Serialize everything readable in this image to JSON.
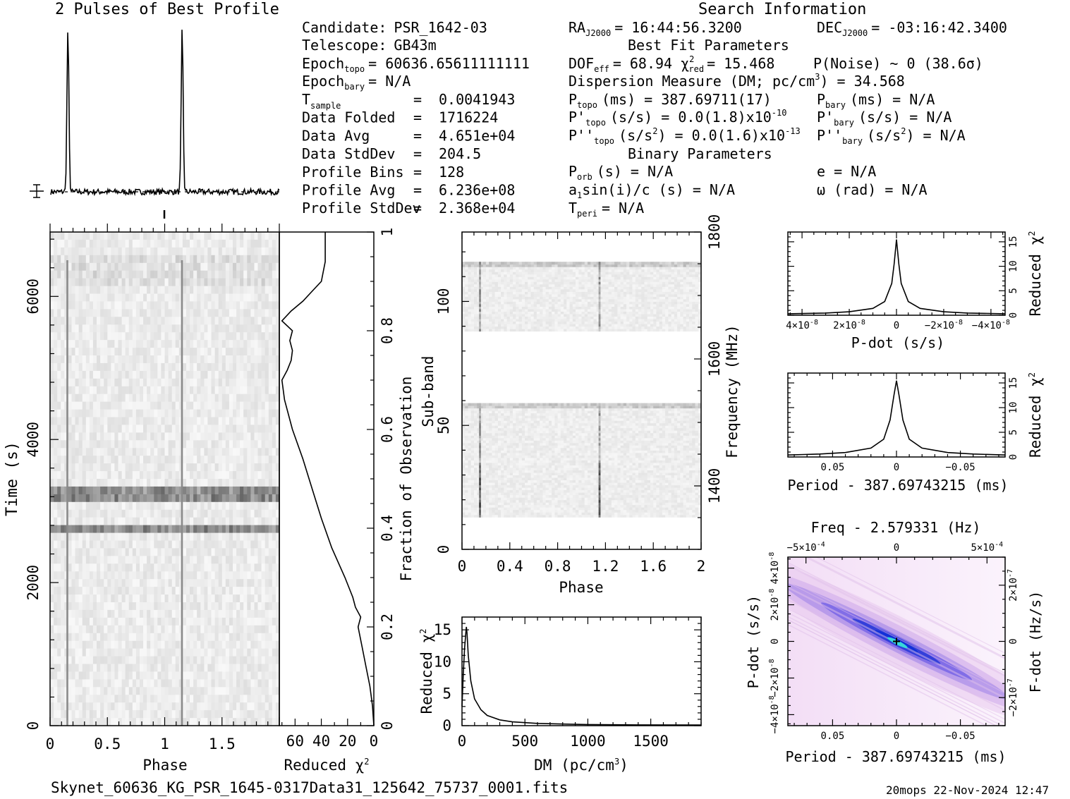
{
  "header": {
    "left_title": "2 Pulses of Best Profile",
    "right_title": "Search Information",
    "best_fit_title": "Best Fit Parameters",
    "binary_title": "Binary Parameters"
  },
  "info": {
    "candidate": {
      "label": "Candidate:",
      "value": "PSR_1642-03"
    },
    "telescope": {
      "label": "Telescope:",
      "value": "GB43m"
    },
    "epoch_topo": {
      "label": "Epoch",
      "sub": "topo",
      "value": "= 60636.65611111111"
    },
    "epoch_bary": {
      "label": "Epoch",
      "sub": "bary",
      "value": "= N/A"
    },
    "rows": [
      {
        "label": "T",
        "sub": "sample",
        "value": "0.0041943"
      },
      {
        "label": "Data Folded",
        "value": "1716224"
      },
      {
        "label": "Data Avg",
        "value": "4.651e+04"
      },
      {
        "label": "Data StdDev",
        "value": "204.5"
      },
      {
        "label": "Profile Bins",
        "value": "128"
      },
      {
        "label": "Profile Avg",
        "value": "6.236e+08"
      },
      {
        "label": "Profile StdDev",
        "value": "2.368e+04"
      }
    ],
    "ra": {
      "label": "RA",
      "sub": "J2000",
      "value": "= 16:44:56.3200"
    },
    "dec": {
      "label": "DEC",
      "sub": "J2000",
      "value": "= -03:16:42.3400"
    },
    "dof": {
      "label": "DOF",
      "sub": "eff",
      "value": "= 68.94"
    },
    "chi2red": {
      "label": "χ",
      "sup": "2",
      "sub": "red",
      "value": "= 15.468"
    },
    "pnoise": "P(Noise) ~ 0   (38.6σ)",
    "dm_line": "Dispersion Measure (DM; pc/cm",
    "dm_sup": "3",
    "dm_value": ") = 34.568",
    "p_topo": {
      "label": "P",
      "sub": "topo",
      "value": "(ms) =  387.69711(17)"
    },
    "pd_topo": {
      "label": "P'",
      "sub": "topo",
      "value": "(s/s) = 0.0(1.8)x10",
      "exp": "-10"
    },
    "pdd_topo": {
      "label": "P''",
      "sub": "topo",
      "value": "(s/s",
      "value2": ") = 0.0(1.6)x10",
      "exp": "-13"
    },
    "p_bary": {
      "label": "P",
      "sub": "bary",
      "value": "(ms) = N/A"
    },
    "pd_bary": {
      "label": "P'",
      "sub": "bary",
      "value": "(s/s) = N/A"
    },
    "pdd_bary": {
      "label": "P''",
      "sub": "bary",
      "value": "(s/s",
      "value2": ") = N/A"
    },
    "porb": {
      "label": "P",
      "sub": "orb",
      "value": "(s) = N/A"
    },
    "a1": {
      "label": "a",
      "sub": "1",
      "value": "sin(i)/c (s) = N/A"
    },
    "tperi": {
      "label": "T",
      "sub": "peri",
      "value": "= N/A"
    },
    "ecc": "e = N/A",
    "omega": "ω (rad) = N/A"
  },
  "footer": {
    "filename": "Skynet_60636_KG_PSR_1645-0317Data31_125642_75737_0001.fits",
    "stamp": "20mops 22-Nov-2024 12:47"
  },
  "chart_data": [
    {
      "id": "profile",
      "type": "line",
      "title": "2 Pulses of Best Profile",
      "x_range": [
        0,
        2
      ],
      "peaks": [
        0.15,
        1.15
      ],
      "baseline": 0.03,
      "peak_height": 1.0
    },
    {
      "id": "time_phase",
      "type": "heatmap",
      "xlabel": "Phase",
      "ylabel": "Time (s)",
      "x_ticks": [
        "0",
        "0.5",
        "1",
        "1.5"
      ],
      "y_ticks": [
        "0",
        "2000",
        "4000",
        "6000"
      ],
      "xlim": [
        0,
        2
      ],
      "ylim": [
        0,
        6900
      ],
      "pulse_phases": [
        0.15,
        1.15
      ],
      "dark_time_bands": [
        3250,
        2750
      ]
    },
    {
      "id": "reduced_chi2_time",
      "type": "line",
      "xlabel": "Reduced χ",
      "xlabel_sup": "2",
      "ylabel": "Fraction of Observation",
      "x_ticks": [
        "60",
        "40",
        "20",
        "0"
      ],
      "y_ticks": [
        "0",
        "0.2",
        "0.4",
        "0.6",
        "0.8",
        "1"
      ],
      "xlim": [
        0,
        72
      ],
      "ylim": [
        0,
        1
      ],
      "x": [
        0,
        1,
        3,
        6,
        9,
        12,
        10,
        14,
        16,
        22,
        32,
        40,
        47,
        54,
        62,
        68,
        70,
        66,
        63,
        62,
        64,
        62,
        70,
        63,
        54,
        47,
        40,
        37,
        37
      ],
      "y": [
        0.0,
        0.04,
        0.08,
        0.12,
        0.16,
        0.2,
        0.22,
        0.24,
        0.26,
        0.3,
        0.36,
        0.42,
        0.48,
        0.54,
        0.6,
        0.66,
        0.7,
        0.72,
        0.74,
        0.76,
        0.78,
        0.8,
        0.82,
        0.84,
        0.86,
        0.88,
        0.9,
        0.94,
        1.0
      ]
    },
    {
      "id": "subband_phase",
      "type": "heatmap",
      "xlabel": "Phase",
      "ylabel": "Sub-band",
      "y2label": "Frequency (MHz)",
      "x_ticks": [
        "0",
        "0.4",
        "0.8",
        "1.2",
        "1.6",
        "2"
      ],
      "y_ticks": [
        "0",
        "50",
        "100"
      ],
      "y2_ticks": [
        "1400",
        "1600",
        "1800"
      ],
      "xlim": [
        0,
        2
      ],
      "ylim": [
        0,
        128
      ],
      "y2lim": [
        1300,
        1800
      ],
      "masked_subbands": [
        59,
        88
      ],
      "signal_subbands": [
        [
          13,
          59
        ],
        [
          88,
          116
        ]
      ],
      "pulse_phases": [
        0.15,
        1.15
      ]
    },
    {
      "id": "dm_curve",
      "type": "line",
      "xlabel": "DM (pc/cm",
      "xlabel_sup": "3",
      "ylabel": "Reduced χ",
      "ylabel_sup": "2",
      "x_ticks": [
        "0",
        "500",
        "1000",
        "1500"
      ],
      "y_ticks": [
        "0",
        "5",
        "10",
        "15"
      ],
      "xlim": [
        0,
        1900
      ],
      "ylim": [
        0,
        17
      ],
      "x": [
        0,
        10,
        20,
        30,
        34.568,
        40,
        50,
        70,
        100,
        150,
        200,
        300,
        400,
        600,
        800,
        1000,
        1400,
        1900
      ],
      "y": [
        3,
        8,
        12,
        14.5,
        15.468,
        14.5,
        11,
        7,
        4.2,
        2.5,
        1.6,
        0.9,
        0.6,
        0.35,
        0.25,
        0.18,
        0.12,
        0.1
      ]
    },
    {
      "id": "pdot_chi2",
      "type": "line",
      "xlabel": "P-dot (s/s)",
      "ylabel": "Reduced χ",
      "ylabel_sup": "2",
      "x_ticks": [
        "4×10",
        "2×10",
        "0",
        "−2×10",
        "−4×10"
      ],
      "x_tick_exp": [
        "-8",
        "-8",
        "",
        "-8",
        "-8"
      ],
      "y_ticks": [
        "0",
        "5",
        "10",
        "15"
      ],
      "xlim": [
        4.6e-08,
        -4.6e-08
      ],
      "ylim": [
        0,
        17
      ],
      "x": [
        4.6e-08,
        3e-08,
        2e-08,
        1e-08,
        5e-09,
        2e-09,
        1e-09,
        0,
        -1e-09,
        -2e-09,
        -5e-09,
        -1e-08,
        -2e-08,
        -3e-08,
        -4.6e-08
      ],
      "y": [
        0.3,
        0.45,
        0.7,
        1.4,
        2.8,
        6.5,
        10.5,
        15.468,
        10.5,
        6.5,
        2.8,
        1.4,
        0.7,
        0.45,
        0.3
      ]
    },
    {
      "id": "period_chi2",
      "type": "line",
      "xlabel": "Period - 387.69743215 (ms)",
      "ylabel": "Reduced χ",
      "ylabel_sup": "2",
      "x_ticks": [
        "0.05",
        "0",
        "−0.05"
      ],
      "y_ticks": [
        "0",
        "5",
        "10",
        "15"
      ],
      "xlim": [
        0.085,
        -0.085
      ],
      "ylim": [
        0,
        17
      ],
      "x": [
        0.085,
        0.06,
        0.04,
        0.02,
        0.01,
        0.005,
        0.002,
        0,
        -0.002,
        -0.005,
        -0.01,
        -0.02,
        -0.04,
        -0.06,
        -0.085
      ],
      "y": [
        0.4,
        0.6,
        0.9,
        1.8,
        3.6,
        7.5,
        12.5,
        15.468,
        12.5,
        7.5,
        3.6,
        1.8,
        0.9,
        0.6,
        0.4
      ]
    },
    {
      "id": "ppdot_plane",
      "type": "heatmap",
      "title": "Freq - 2.579331 (Hz)",
      "top_ticks": [
        "−5×10",
        "0",
        "5×10"
      ],
      "top_tick_exp": [
        "-4",
        "",
        "-4"
      ],
      "xlabel": "Period - 387.69743215 (ms)",
      "ylabel": "P-dot (s/s)",
      "y2label": "F-dot (Hz/s)",
      "x_ticks": [
        "0.05",
        "0",
        "−0.05"
      ],
      "y_ticks": [
        "4×10",
        "2×10",
        "0",
        "−2×10",
        "−4×10"
      ],
      "y_tick_exp": [
        "-8",
        "-8",
        "",
        "-8",
        "-8"
      ],
      "y2_ticks": [
        "2×10",
        "0",
        "−2×10"
      ],
      "y2_tick_exp": [
        "-7",
        "",
        "-7"
      ],
      "xlim": [
        0.085,
        -0.085
      ],
      "ylim": [
        4.6e-08,
        -4.6e-08
      ],
      "best_point": [
        0,
        0
      ],
      "colors": {
        "low": "#f6e4f8",
        "mid": "#6e58e6",
        "high": "#1238d0",
        "peak": "#38d8d8"
      }
    }
  ]
}
